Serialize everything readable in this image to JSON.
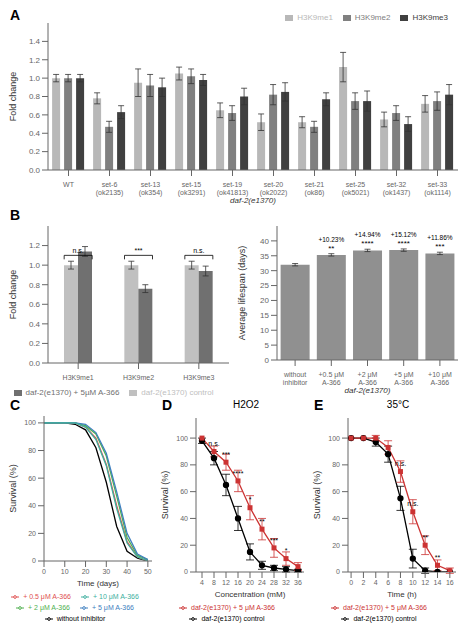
{
  "chart_data": [
    {
      "type": "bar",
      "annotations": [
        {
          "text": "A"
        }
      ],
      "categories": [
        "WT",
        "set-6\n(ok2135)",
        "set-13\n(ok354)",
        "set-15\n(ok3291)",
        "set-19\n(ok41813)",
        "set-20\n(ok2022)",
        "set-21\n(ok86)",
        "set-25\n(ok5021)",
        "set-32\n(ok1437)",
        "set-33\n(ok1114)"
      ],
      "series": [
        {
          "name": "H3K9me1",
          "color": "#b8b8b8",
          "values": [
            1.0,
            0.78,
            0.95,
            1.05,
            0.65,
            0.52,
            0.52,
            1.12,
            0.55,
            0.72
          ],
          "errors": [
            0.04,
            0.06,
            0.15,
            0.07,
            0.08,
            0.09,
            0.06,
            0.16,
            0.08,
            0.09
          ]
        },
        {
          "name": "H3K9me2",
          "color": "#808080",
          "values": [
            1.0,
            0.47,
            0.92,
            1.02,
            0.62,
            0.82,
            0.47,
            0.75,
            0.62,
            0.75
          ],
          "errors": [
            0.04,
            0.06,
            0.12,
            0.08,
            0.08,
            0.11,
            0.06,
            0.09,
            0.08,
            0.1
          ]
        },
        {
          "name": "H3K9me3",
          "color": "#404040",
          "values": [
            1.0,
            0.63,
            0.9,
            0.98,
            0.8,
            0.85,
            0.77,
            0.75,
            0.5,
            0.82
          ],
          "errors": [
            0.04,
            0.07,
            0.1,
            0.06,
            0.09,
            0.1,
            0.07,
            0.11,
            0.08,
            0.11
          ]
        }
      ],
      "xlabel": "daf-2(e1370)",
      "ylabel": "Fold change",
      "ylim": [
        0,
        1.6
      ],
      "yticks": [
        {
          "value": 0,
          "label": "0.0"
        },
        0.2,
        0.4,
        0.6,
        0.8,
        {
          "value": 1,
          "label": "1.0"
        },
        1.2,
        1.4
      ],
      "grid": false,
      "legend": "top"
    },
    {
      "type": "bar",
      "annotations": [
        {
          "text": "B"
        },
        {
          "x": "H3K9me1",
          "y": 1.1,
          "text": "n.s."
        },
        {
          "x": "H3K9me2",
          "y": 1.1,
          "text": "***"
        },
        {
          "x": "H3K9me3",
          "y": 1.1,
          "text": "n.s."
        }
      ],
      "categories": [
        "H3K9me1",
        "H3K9me2",
        "H3K9me3"
      ],
      "series": [
        {
          "name": "daf-2(e1370) control",
          "color": "#c0c0c0",
          "values": [
            1.0,
            1.0,
            1.0
          ],
          "errors": [
            0.04,
            0.04,
            0.04
          ]
        },
        {
          "name": "daf-2(e1370) + 5µM A-366",
          "color": "#707070",
          "values": [
            1.14,
            0.76,
            0.94
          ],
          "errors": [
            0.05,
            0.04,
            0.05
          ]
        }
      ],
      "ylabel": "Fold change",
      "ylim": [
        0,
        1.4
      ],
      "yticks": [
        {
          "value": 0,
          "label": "0.0"
        },
        0.2,
        0.4,
        0.6,
        0.8,
        {
          "value": 1,
          "label": "1.0"
        },
        1.2
      ],
      "grid": false,
      "legend": "bottom"
    },
    {
      "type": "bar",
      "annotations": [
        {
          "x": "+0.5 μM\nA-366",
          "text": "**"
        },
        {
          "x": "+0.5 μM\nA-366",
          "text": "+10.23%"
        },
        {
          "x": "+2 μM\nA-366",
          "text": "****"
        },
        {
          "x": "+2 μM\nA-366",
          "text": "+14.94%"
        },
        {
          "x": "+5 μM\nA-366",
          "text": "****"
        },
        {
          "x": "+5 μM\nA-366",
          "text": "+15.12%"
        },
        {
          "x": "+10 μM\nA-366",
          "text": "***"
        },
        {
          "x": "+10 μM\nA-366",
          "text": "+11.86%"
        }
      ],
      "categories": [
        "without\ninhibitor",
        "+0.5 μM\nA-366",
        "+2 μM\nA-366",
        "+5 μM\nA-366",
        "+10 μM\nA-366"
      ],
      "values": [
        32.0,
        35.3,
        36.8,
        36.9,
        35.8
      ],
      "errors": [
        0.4,
        0.4,
        0.4,
        0.4,
        0.4
      ],
      "color": "#909090",
      "xlabel": "daf-2(e1370)",
      "ylabel": "Average lifespan (days)",
      "ylim": [
        0,
        45
      ],
      "yticks": [
        0,
        5,
        10,
        15,
        20,
        25,
        30,
        35,
        40
      ],
      "grid": false
    },
    {
      "type": "line",
      "annotations": [
        {
          "text": "C"
        }
      ],
      "x": [
        0,
        5,
        10,
        15,
        20,
        25,
        30,
        35,
        40,
        45,
        50
      ],
      "series": [
        {
          "name": "without inhibitor",
          "color": "#000000",
          "values": [
            100,
            100,
            100,
            99,
            95,
            82,
            57,
            25,
            7,
            2,
            0
          ]
        },
        {
          "name": "+ 0.5 μM A-366",
          "color": "#e05050",
          "values": [
            100,
            100,
            100,
            100,
            97,
            89,
            70,
            40,
            14,
            3,
            0
          ]
        },
        {
          "name": "+ 2 μM A-366",
          "color": "#50b050",
          "values": [
            100,
            100,
            100,
            100,
            98,
            92,
            76,
            47,
            17,
            4,
            1
          ]
        },
        {
          "name": "+ 5 μM A-366",
          "color": "#4080c0",
          "values": [
            100,
            100,
            100,
            100,
            99,
            93,
            78,
            50,
            20,
            5,
            1
          ]
        },
        {
          "name": "+ 10 μM A-366",
          "color": "#40b0a0",
          "values": [
            100,
            100,
            100,
            100,
            97,
            88,
            69,
            38,
            13,
            3,
            0
          ]
        }
      ],
      "xlabel": "Time (days)",
      "ylabel": "Survival (%)",
      "xlim": [
        0,
        52
      ],
      "xticks": [
        0,
        10,
        20,
        30,
        40,
        50
      ],
      "ylim": [
        0,
        105
      ],
      "yticks": [
        0,
        20,
        40,
        60,
        80,
        100
      ],
      "grid": false,
      "legend": "bottom"
    },
    {
      "type": "line",
      "title": "H2O2",
      "annotations": [
        {
          "text": "D"
        },
        {
          "x": 8,
          "y": 94,
          "text": "n.s."
        },
        {
          "x": 12,
          "y": 86,
          "text": "***"
        },
        {
          "x": 16,
          "y": 72,
          "text": "****"
        },
        {
          "x": 20,
          "y": 52,
          "text": "*"
        },
        {
          "x": 24,
          "y": 36,
          "text": "**"
        },
        {
          "x": 28,
          "y": 22,
          "text": "***"
        },
        {
          "x": 32,
          "y": 14,
          "text": "*"
        }
      ],
      "x": [
        4,
        8,
        12,
        16,
        20,
        24,
        28,
        32,
        36
      ],
      "series": [
        {
          "name": "daf-2(e1370) control",
          "color": "#000000",
          "marker": "circle",
          "values": [
            98,
            85,
            65,
            40,
            15,
            5,
            3,
            2,
            1
          ],
          "errors": [
            2,
            5,
            8,
            9,
            6,
            3,
            2,
            2,
            1
          ]
        },
        {
          "name": "daf-2(e1370) + 5 μM A-366",
          "color": "#cc3333",
          "marker": "square",
          "values": [
            100,
            90,
            82,
            68,
            48,
            32,
            18,
            10,
            4
          ],
          "errors": [
            0,
            4,
            6,
            8,
            9,
            8,
            7,
            5,
            3
          ]
        }
      ],
      "xlabel": "Concentration (mM)",
      "ylabel": "Survival (%)",
      "xlim": [
        2,
        38
      ],
      "xticks": [
        4,
        8,
        12,
        16,
        20,
        24,
        28,
        32,
        36
      ],
      "ylim": [
        0,
        115
      ],
      "yticks": [
        0,
        20,
        40,
        60,
        80,
        100
      ],
      "grid": false,
      "legend": "bottom"
    },
    {
      "type": "line",
      "title": "35°C",
      "annotations": [
        {
          "text": "E"
        },
        {
          "x": 8,
          "y": 79,
          "text": "n.s."
        },
        {
          "x": 10,
          "y": 49,
          "text": "n.s."
        },
        {
          "x": 12,
          "y": 24,
          "text": "**"
        },
        {
          "x": 14,
          "y": 9,
          "text": "**"
        }
      ],
      "x": [
        0,
        2,
        4,
        6,
        8,
        10,
        12,
        14,
        16
      ],
      "series": [
        {
          "name": "daf-2(e1370) control",
          "color": "#000000",
          "marker": "circle",
          "values": [
            100,
            100,
            97,
            88,
            55,
            10,
            1,
            0,
            0
          ],
          "errors": [
            0,
            0,
            3,
            6,
            9,
            7,
            2,
            0,
            0
          ]
        },
        {
          "name": "daf-2(e1370) + 5 μM A-366",
          "color": "#cc3333",
          "marker": "square",
          "values": [
            100,
            100,
            100,
            93,
            75,
            45,
            20,
            5,
            1
          ],
          "errors": [
            0,
            0,
            2,
            5,
            8,
            9,
            7,
            4,
            2
          ]
        }
      ],
      "xlabel": "Time (h)",
      "ylabel": "Survival (%)",
      "xlim": [
        -0.5,
        17
      ],
      "xticks": [
        0,
        2,
        4,
        6,
        8,
        10,
        12,
        14,
        16
      ],
      "ylim": [
        0,
        115
      ],
      "yticks": [
        0,
        20,
        40,
        60,
        80,
        100
      ],
      "grid": false,
      "legend": "bottom"
    }
  ]
}
